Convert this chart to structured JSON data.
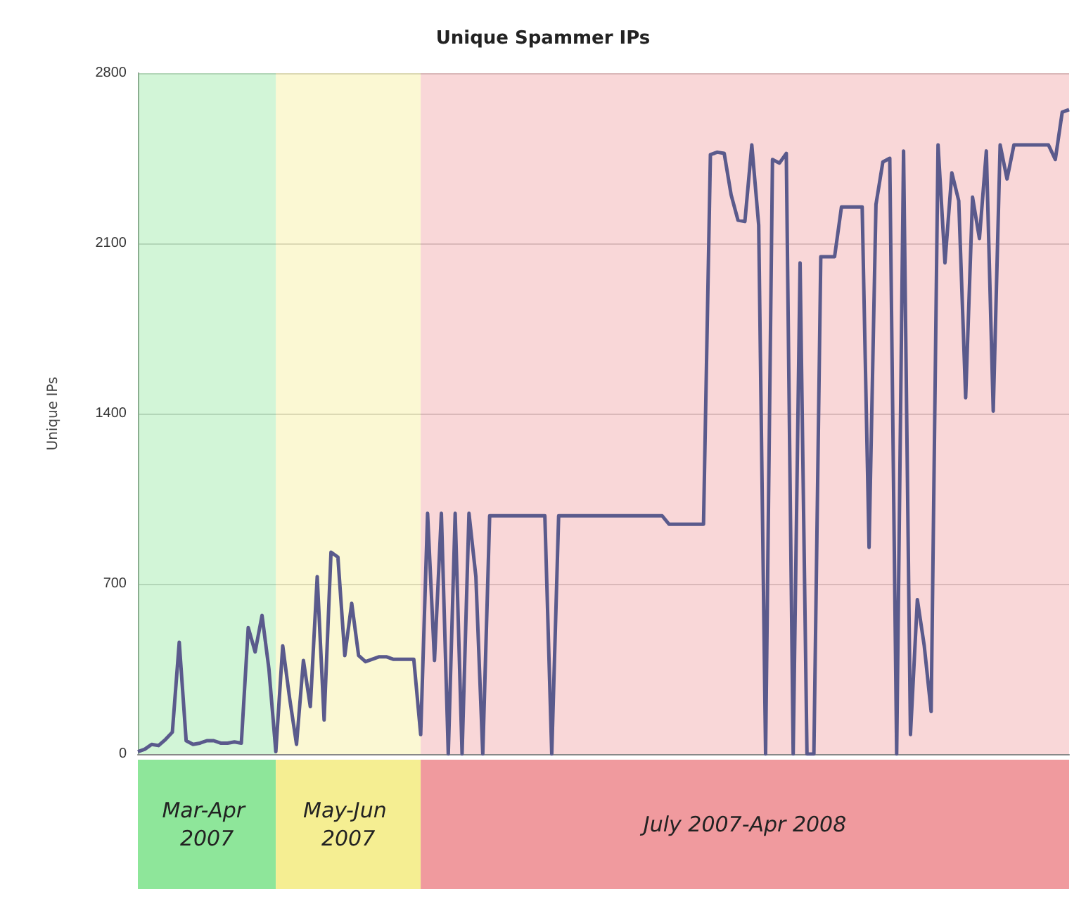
{
  "chart_data": {
    "type": "line",
    "title": "Unique Spammer IPs",
    "ylabel": "Unique IPs",
    "categories": [
      null,
      null,
      null,
      null,
      null,
      null,
      null,
      null,
      null,
      null,
      null,
      null,
      null,
      null,
      null,
      null,
      null,
      null,
      null,
      null,
      null,
      null,
      null,
      null,
      null,
      null,
      null,
      null,
      null,
      null,
      null,
      null,
      null,
      null,
      null,
      null,
      null,
      null,
      null,
      null,
      null,
      null,
      null,
      null,
      null,
      null,
      null,
      null,
      null,
      null,
      null,
      null,
      null,
      null,
      null,
      null,
      null,
      null,
      null,
      null,
      null,
      null,
      null,
      null,
      null,
      null,
      null,
      null,
      null,
      null,
      null,
      null,
      null,
      null,
      null,
      null,
      null,
      null,
      null,
      null,
      null,
      null,
      null,
      null,
      null,
      null,
      null,
      null,
      null,
      null,
      null,
      null,
      null,
      null,
      null,
      null,
      null,
      null,
      null,
      null,
      null,
      null,
      null,
      null,
      null,
      null,
      null,
      null,
      null,
      null,
      null,
      null,
      null,
      null,
      null,
      null,
      null,
      null,
      null,
      null,
      null,
      null,
      null,
      null,
      null,
      null,
      null,
      null,
      null,
      null,
      null,
      null,
      null,
      null,
      null,
      null
    ],
    "series": [
      {
        "color": "#5a5a8c",
        "values": [
          10,
          20,
          40,
          35,
          60,
          90,
          460,
          55,
          40,
          45,
          55,
          55,
          45,
          45,
          50,
          45,
          520,
          420,
          570,
          350,
          10,
          445,
          230,
          40,
          385,
          195,
          730,
          140,
          830,
          810,
          405,
          620,
          405,
          380,
          390,
          400,
          400,
          390,
          390,
          390,
          390,
          80,
          990,
          385,
          990,
          0,
          990,
          0,
          990,
          730,
          0,
          980,
          980,
          980,
          980,
          980,
          980,
          980,
          980,
          980,
          0,
          980,
          980,
          980,
          980,
          980,
          980,
          980,
          980,
          980,
          980,
          980,
          980,
          980,
          980,
          980,
          980,
          945,
          945,
          945,
          945,
          945,
          945,
          2465,
          2475,
          2470,
          2300,
          2195,
          2190,
          2505,
          2175,
          0,
          2445,
          2430,
          2470,
          0,
          2020,
          0,
          0,
          2045,
          2045,
          2045,
          2250,
          2250,
          2250,
          2250,
          850,
          2260,
          2435,
          2450,
          0,
          2480,
          80,
          635,
          445,
          175,
          2505,
          2020,
          2390,
          2275,
          1465,
          2290,
          2120,
          2480,
          1410,
          2505,
          2365,
          2505,
          2505,
          2505,
          2505,
          2505,
          2505,
          2445,
          2640,
          2650
        ]
      }
    ],
    "ylim": [
      0,
      2800
    ],
    "yticks": [
      0,
      700,
      1400,
      2100,
      2800
    ],
    "tick_labels": "y",
    "grid": "y",
    "line_style": "solid",
    "annotations": [
      "Mar-Apr 2007",
      "May-Jun 2007",
      "July 2007-Apr 2008"
    ]
  }
}
